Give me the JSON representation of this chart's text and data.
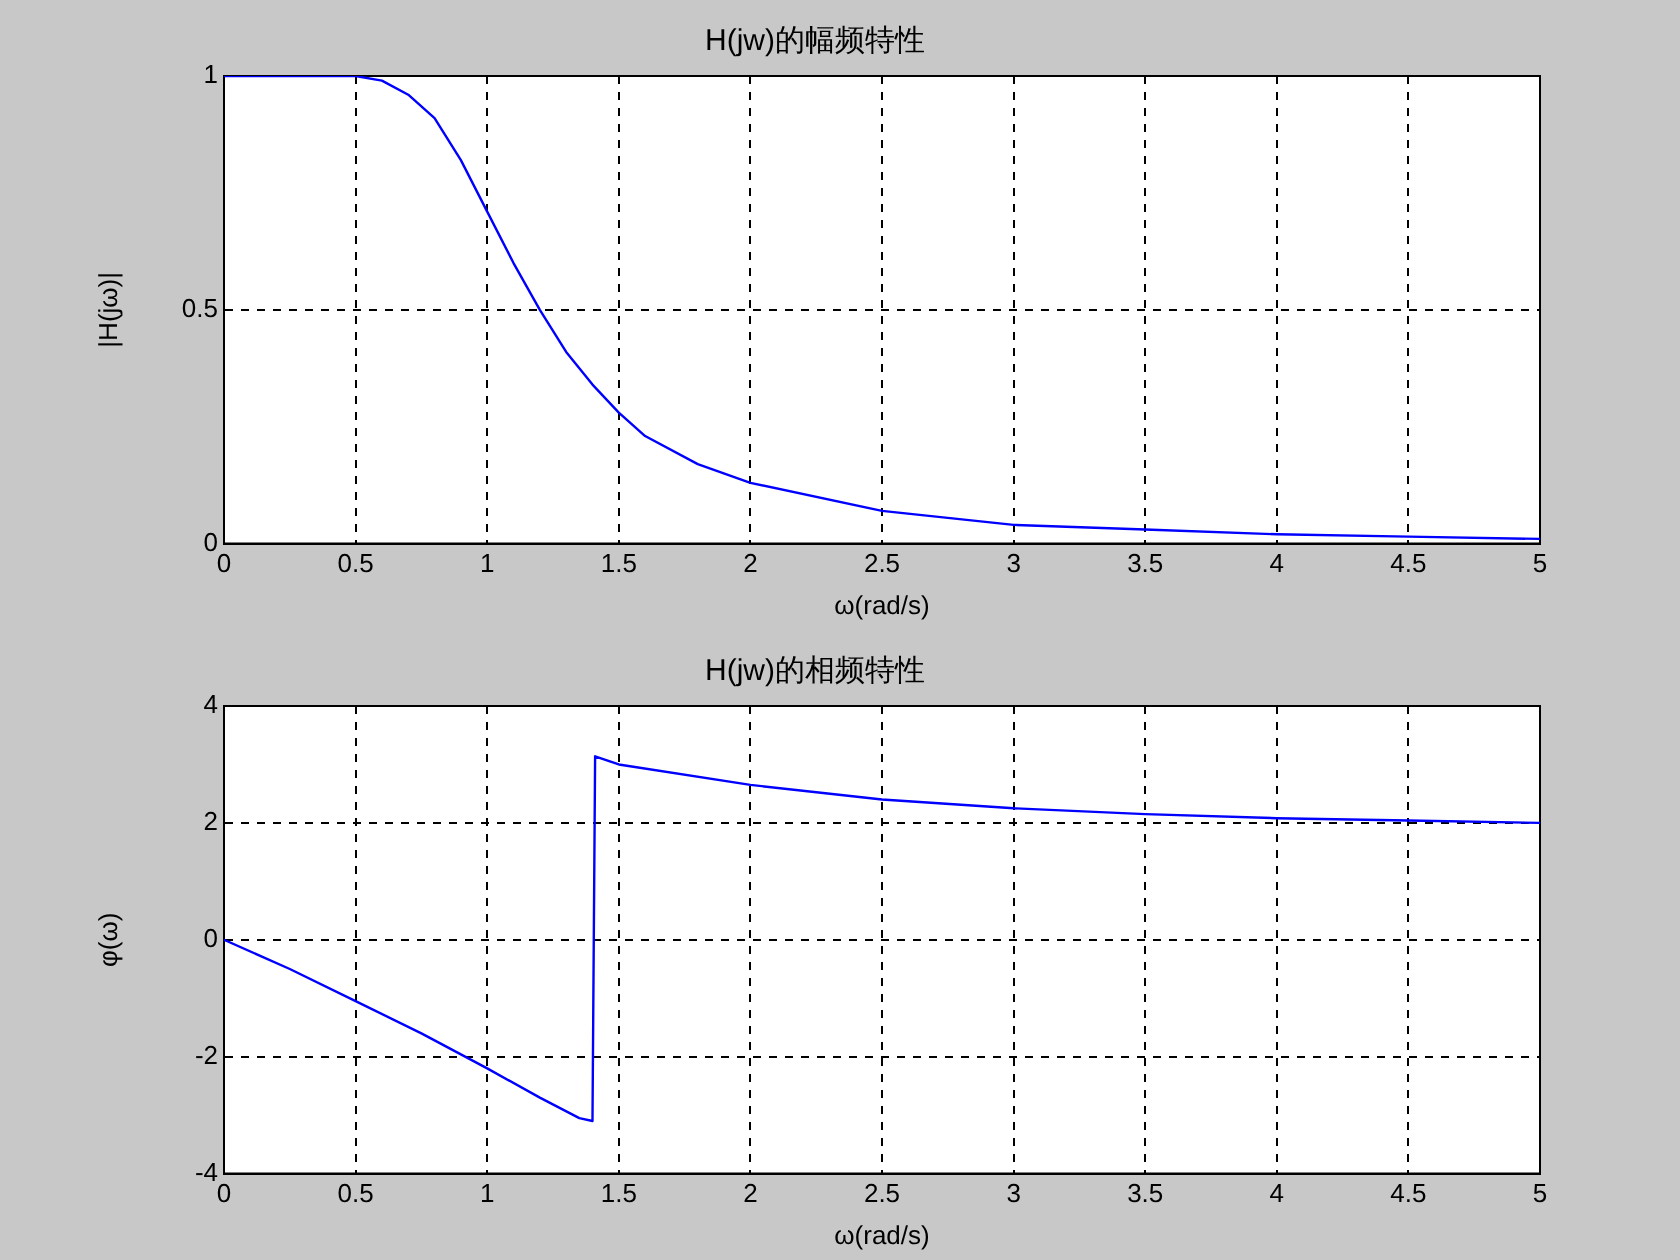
{
  "chart_data": [
    {
      "type": "line",
      "title": "H(jw)的幅频特性",
      "xlabel": "ω(rad/s)",
      "ylabel": "|H(jω)|",
      "xlim": [
        0,
        5
      ],
      "ylim": [
        0,
        1
      ],
      "xticks": [
        0,
        0.5,
        1,
        1.5,
        2,
        2.5,
        3,
        3.5,
        4,
        4.5,
        5
      ],
      "yticks": [
        0,
        0.5,
        1
      ],
      "grid": true,
      "legend": false,
      "marker": "none",
      "line_style": "solid",
      "series": [
        {
          "color": "#0000ff",
          "x": [
            0,
            0.5,
            0.6,
            0.7,
            0.8,
            0.9,
            1.0,
            1.1,
            1.2,
            1.3,
            1.4,
            1.5,
            1.6,
            1.8,
            2.0,
            2.5,
            3,
            3.5,
            4,
            4.5,
            5
          ],
          "values": [
            1,
            1,
            0.99,
            0.96,
            0.91,
            0.82,
            0.71,
            0.6,
            0.5,
            0.41,
            0.34,
            0.28,
            0.23,
            0.17,
            0.13,
            0.07,
            0.04,
            0.03,
            0.02,
            0.015,
            0.01
          ]
        }
      ]
    },
    {
      "type": "line",
      "title": "H(jw)的相频特性",
      "xlabel": "ω(rad/s)",
      "ylabel": "φ(ω)",
      "xlim": [
        0,
        5
      ],
      "ylim": [
        -4,
        4
      ],
      "xticks": [
        0,
        0.5,
        1,
        1.5,
        2,
        2.5,
        3,
        3.5,
        4,
        4.5,
        5
      ],
      "yticks": [
        -4,
        -2,
        0,
        2,
        4
      ],
      "grid": true,
      "legend": false,
      "marker": "none",
      "line_style": "solid",
      "series": [
        {
          "color": "#0000ff",
          "x": [
            0,
            0.25,
            0.5,
            0.75,
            1.0,
            1.2,
            1.35,
            1.4,
            1.41,
            1.5,
            2,
            2.5,
            3,
            3.5,
            4,
            4.5,
            5
          ],
          "values": [
            0,
            -0.5,
            -1.05,
            -1.6,
            -2.2,
            -2.7,
            -3.05,
            -3.1,
            3.14,
            3.0,
            2.65,
            2.4,
            2.25,
            2.15,
            2.08,
            2.04,
            2.0
          ]
        }
      ]
    }
  ]
}
